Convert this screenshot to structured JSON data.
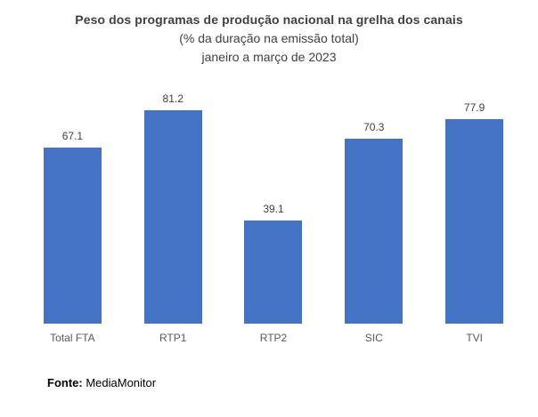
{
  "chart_data": {
    "type": "bar",
    "title": "Peso dos programas de produção nacional na grelha dos canais",
    "subtitle": "(% da duração na emissão total)",
    "period": "janeiro a março de 2023",
    "categories": [
      "Total FTA",
      "RTP1",
      "RTP2",
      "SIC",
      "TVI"
    ],
    "values": [
      67.1,
      81.2,
      39.1,
      70.3,
      77.9
    ],
    "value_labels": [
      "67.1",
      "81.2",
      "39.1",
      "70.3",
      "77.9"
    ],
    "ylim": [
      0,
      90
    ],
    "grid": false,
    "legend": "none",
    "data_labels": true,
    "bar_color": "#4472C4"
  },
  "source": {
    "label": "Fonte:",
    "value": " MediaMonitor"
  },
  "colors": {
    "background": "#ffffff",
    "bar": "#4472C4",
    "title_text": "#404040",
    "data_label_text": "#404040",
    "category_text": "#595959",
    "source_text": "#000000"
  }
}
